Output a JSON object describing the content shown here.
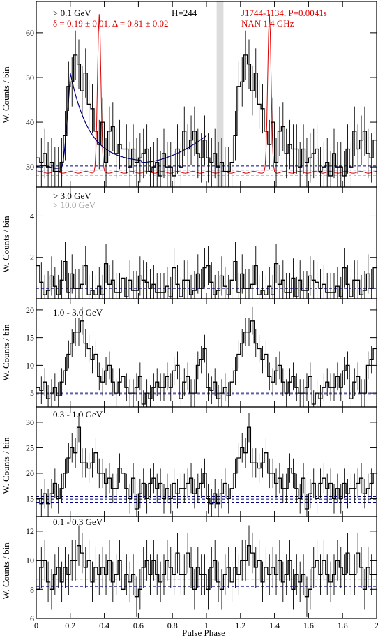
{
  "figure": {
    "xlabel": "Pulse Phase",
    "ylabel": "W. Counts / bin",
    "colors": {
      "data": "#000000",
      "radio": "#dd0000",
      "fit": "#000080",
      "bgline": "#000080",
      "gap": "#dcdcdc",
      "grey_label": "#999999"
    }
  },
  "annotations": {
    "top_energy": "> 0.1 GeV",
    "h_test": "H=244",
    "fit_params": "δ = 0.19 ± 0.01, Δ = 0.81 ± 0.02",
    "pulsar": "J1744-1134, P=0.0041s",
    "radio": "NAN 1.4 GHz",
    "p2_label_a": "> 3.0 GeV",
    "p2_label_b": "> 10.0 GeV",
    "p3_label": "1.0 - 3.0 GeV",
    "p4_label": "0.3 - 1.0 GeV",
    "p5_label": "0.1 - 0.3 GeV"
  },
  "chart_data": [
    {
      "type": "histogram",
      "energy": "> 0.1 GeV",
      "xlim": [
        0,
        2
      ],
      "ylim": [
        25.5,
        67
      ],
      "x_ticks": [
        0,
        0.2,
        0.4,
        0.6,
        0.8,
        1,
        1.2,
        1.4,
        1.6,
        1.8,
        2
      ],
      "y_ticks": [
        30,
        40,
        50,
        60
      ],
      "bins_per_phase": 50,
      "values": [
        32,
        31,
        33,
        30,
        31,
        29,
        29,
        31,
        37,
        48,
        49,
        55,
        53,
        47,
        51,
        44,
        43,
        38,
        35,
        40,
        31,
        38,
        39,
        33,
        35,
        34,
        34,
        30,
        34,
        31,
        32,
        33,
        34,
        29,
        30,
        31,
        28,
        33,
        30,
        30,
        28,
        34,
        30,
        38,
        34,
        36,
        38,
        33,
        32,
        36
      ],
      "error": 5.5,
      "background_levels": [
        28.2,
        29.3,
        30.2
      ],
      "radio_profile": {
        "baseline": 28.8,
        "peak_phase": 0.37,
        "peak_value": 64
      },
      "fit_curve": {
        "x_range": [
          0,
          1
        ],
        "peak_phase": 0.2,
        "peak_value": 51
      },
      "gap_band": [
        1.06,
        1.1
      ]
    },
    {
      "type": "histogram",
      "energy": "> 3.0 GeV",
      "xlim": [
        0,
        2
      ],
      "ylim": [
        0,
        5.4
      ],
      "y_ticks": [
        2,
        4
      ],
      "bins_per_phase": 50,
      "values": [
        1.6,
        0.8,
        0.2,
        0.4,
        1.1,
        0.6,
        0.2,
        0.9,
        1.8,
        0.3,
        1.2,
        0.5,
        0.5,
        0.7,
        1.6,
        0.2,
        0.4,
        0.2,
        0.6,
        0.2,
        1.7,
        0.7,
        0.9,
        0.3,
        0.3,
        1.0,
        0.1,
        0.9,
        0.4,
        0.4,
        1.1,
        0.9,
        0.8,
        0.5,
        0.7,
        0.3,
        0.3,
        0.3,
        0.6,
        0.1,
        1.5,
        0.7,
        0.1,
        0.9,
        0.9,
        0.2,
        0.4,
        1.2,
        0.5,
        1.5
      ],
      "error": 0.95,
      "background_levels": [
        0.5
      ]
    },
    {
      "type": "histogram",
      "energy": "1.0 - 3.0 GeV",
      "xlim": [
        0,
        2
      ],
      "ylim": [
        2.5,
        22
      ],
      "y_ticks": [
        5,
        10,
        15,
        20
      ],
      "bins_per_phase": 50,
      "values": [
        6,
        5.5,
        7,
        4,
        5,
        6,
        4.5,
        7,
        9,
        12,
        14,
        16,
        16,
        18,
        14,
        13,
        11,
        12,
        8,
        7,
        9,
        10,
        7,
        5,
        7,
        8,
        6,
        5,
        5,
        6,
        8,
        3,
        5,
        4,
        6,
        7,
        6,
        6,
        8,
        6,
        9,
        10,
        4,
        7,
        8,
        5,
        5,
        10,
        11,
        13
      ],
      "error": 2.5,
      "background_levels": [
        4.8,
        5
      ]
    },
    {
      "type": "histogram",
      "energy": "0.3 - 1.0 GeV",
      "xlim": [
        0,
        2
      ],
      "ylim": [
        11.5,
        33
      ],
      "y_ticks": [
        15,
        20,
        25,
        30
      ],
      "bins_per_phase": 50,
      "values": [
        15,
        14,
        16,
        14,
        16,
        18,
        15,
        17,
        20,
        23,
        25,
        24,
        29,
        22,
        22,
        21,
        22,
        24,
        20,
        20,
        18,
        19,
        17,
        17,
        21,
        20,
        17,
        15,
        19,
        13,
        16,
        18,
        15,
        18,
        19,
        17,
        18,
        15,
        17,
        15,
        18,
        16,
        17,
        17,
        18,
        19,
        16,
        17,
        18,
        20
      ],
      "error": 2.9,
      "background_levels": [
        14.3,
        14.9,
        15.4
      ]
    },
    {
      "type": "histogram",
      "energy": "0.1 - 0.3 GeV",
      "xlim": [
        0,
        2
      ],
      "ylim": [
        6,
        13
      ],
      "y_ticks": [
        6,
        8,
        10,
        12
      ],
      "bins_per_phase": 50,
      "values": [
        8,
        9.5,
        10,
        8.5,
        8,
        9,
        9.5,
        8.5,
        9.5,
        9,
        10,
        10,
        11,
        10.5,
        9.5,
        10,
        8.5,
        9.5,
        9,
        9.5,
        9,
        10,
        8.5,
        9,
        10,
        8,
        9,
        8.5,
        9,
        7.5,
        8,
        9.5,
        10,
        9,
        10,
        9,
        8.5,
        9,
        10,
        9.5,
        9,
        10.5,
        9,
        9,
        10.5,
        9.5,
        8,
        9.5,
        9,
        9
      ],
      "error": 1.4,
      "background_levels": [
        8.2,
        8.7
      ]
    }
  ]
}
